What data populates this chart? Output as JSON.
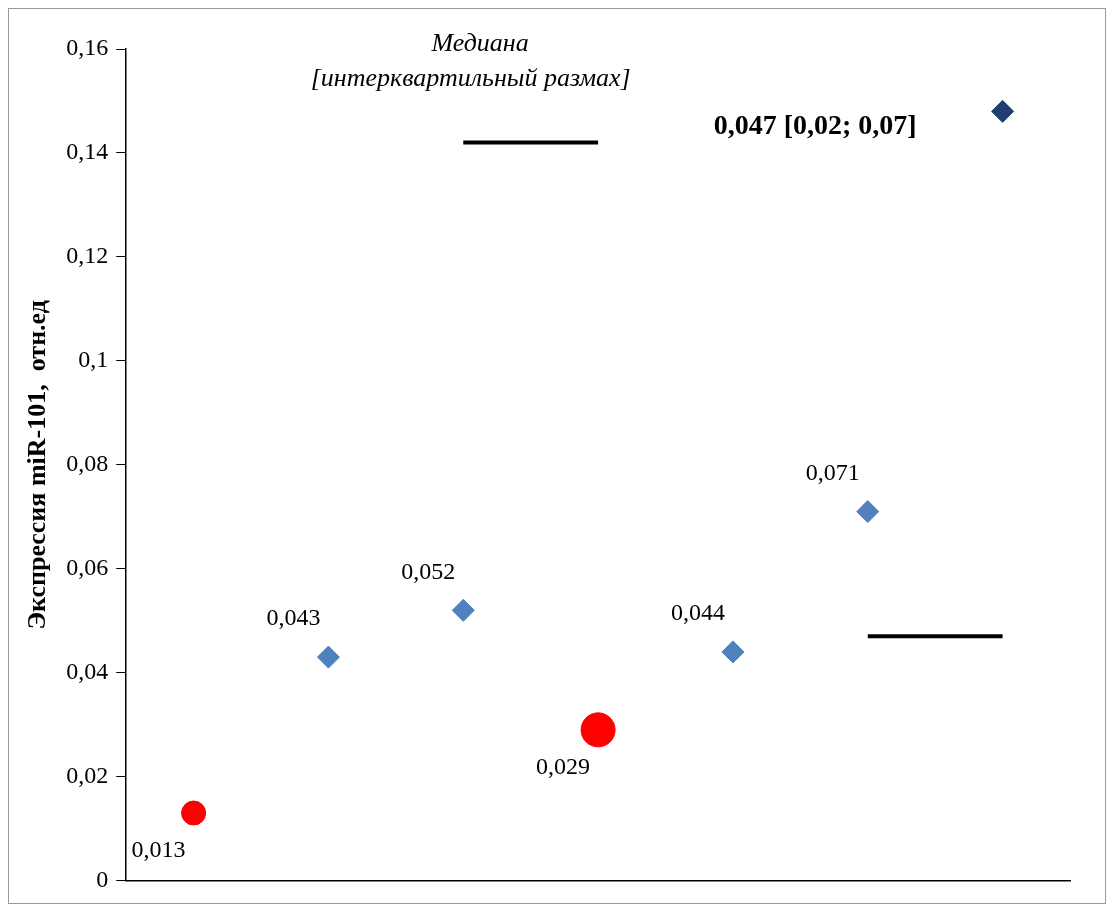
{
  "chart_data": {
    "type": "scatter",
    "ylabel": "Экспрессия miR-101,  отн.ед",
    "categories": [
      null,
      null,
      null,
      null,
      null,
      null,
      null
    ],
    "ylim": [
      0,
      0.16
    ],
    "yticks": [
      {
        "value": 0,
        "label": "0"
      },
      {
        "value": 0.02,
        "label": "0,02"
      },
      {
        "value": 0.04,
        "label": "0,04"
      },
      {
        "value": 0.06,
        "label": "0,06"
      },
      {
        "value": 0.08,
        "label": "0,08"
      },
      {
        "value": 0.1,
        "label": "0,1"
      },
      {
        "value": 0.12,
        "label": "0,12"
      },
      {
        "value": 0.14,
        "label": "0,14"
      },
      {
        "value": 0.16,
        "label": "0,16"
      }
    ],
    "tick_labels": "y",
    "grid": false,
    "legend": false,
    "annotations": [
      "Медиана",
      "[интерквартильный размах]",
      "0,047 [0,02; 0,07]"
    ],
    "series": [
      {
        "type": "line",
        "values": [
          null,
          null,
          0.142,
          0.142,
          null,
          null,
          null
        ],
        "color": "#000000",
        "marker": "none"
      },
      {
        "type": "line",
        "values": [
          null,
          null,
          null,
          null,
          null,
          0.047,
          0.047
        ],
        "color": "#000000",
        "marker": "none"
      },
      {
        "values": [
          null,
          0.043,
          0.052,
          null,
          0.044,
          0.071,
          0.148
        ],
        "colors": [
          null,
          "#4f81bd",
          "#4f81bd",
          null,
          "#4f81bd",
          "#4f81bd",
          "#1f3f6e"
        ],
        "marker": "diamond",
        "value_labels": [
          null,
          "0,043",
          "0,052",
          null,
          "0,044",
          "0,071",
          null
        ]
      },
      {
        "type": "bubble",
        "values": [
          0.013,
          null,
          null,
          0.029,
          null,
          null,
          null
        ],
        "sizes": [
          0.5,
          null,
          null,
          1,
          null,
          null,
          null
        ],
        "color": "#ff0000",
        "marker": "circle",
        "value_labels": [
          "0,013",
          null,
          null,
          "0,029",
          null,
          null,
          null
        ]
      }
    ]
  }
}
